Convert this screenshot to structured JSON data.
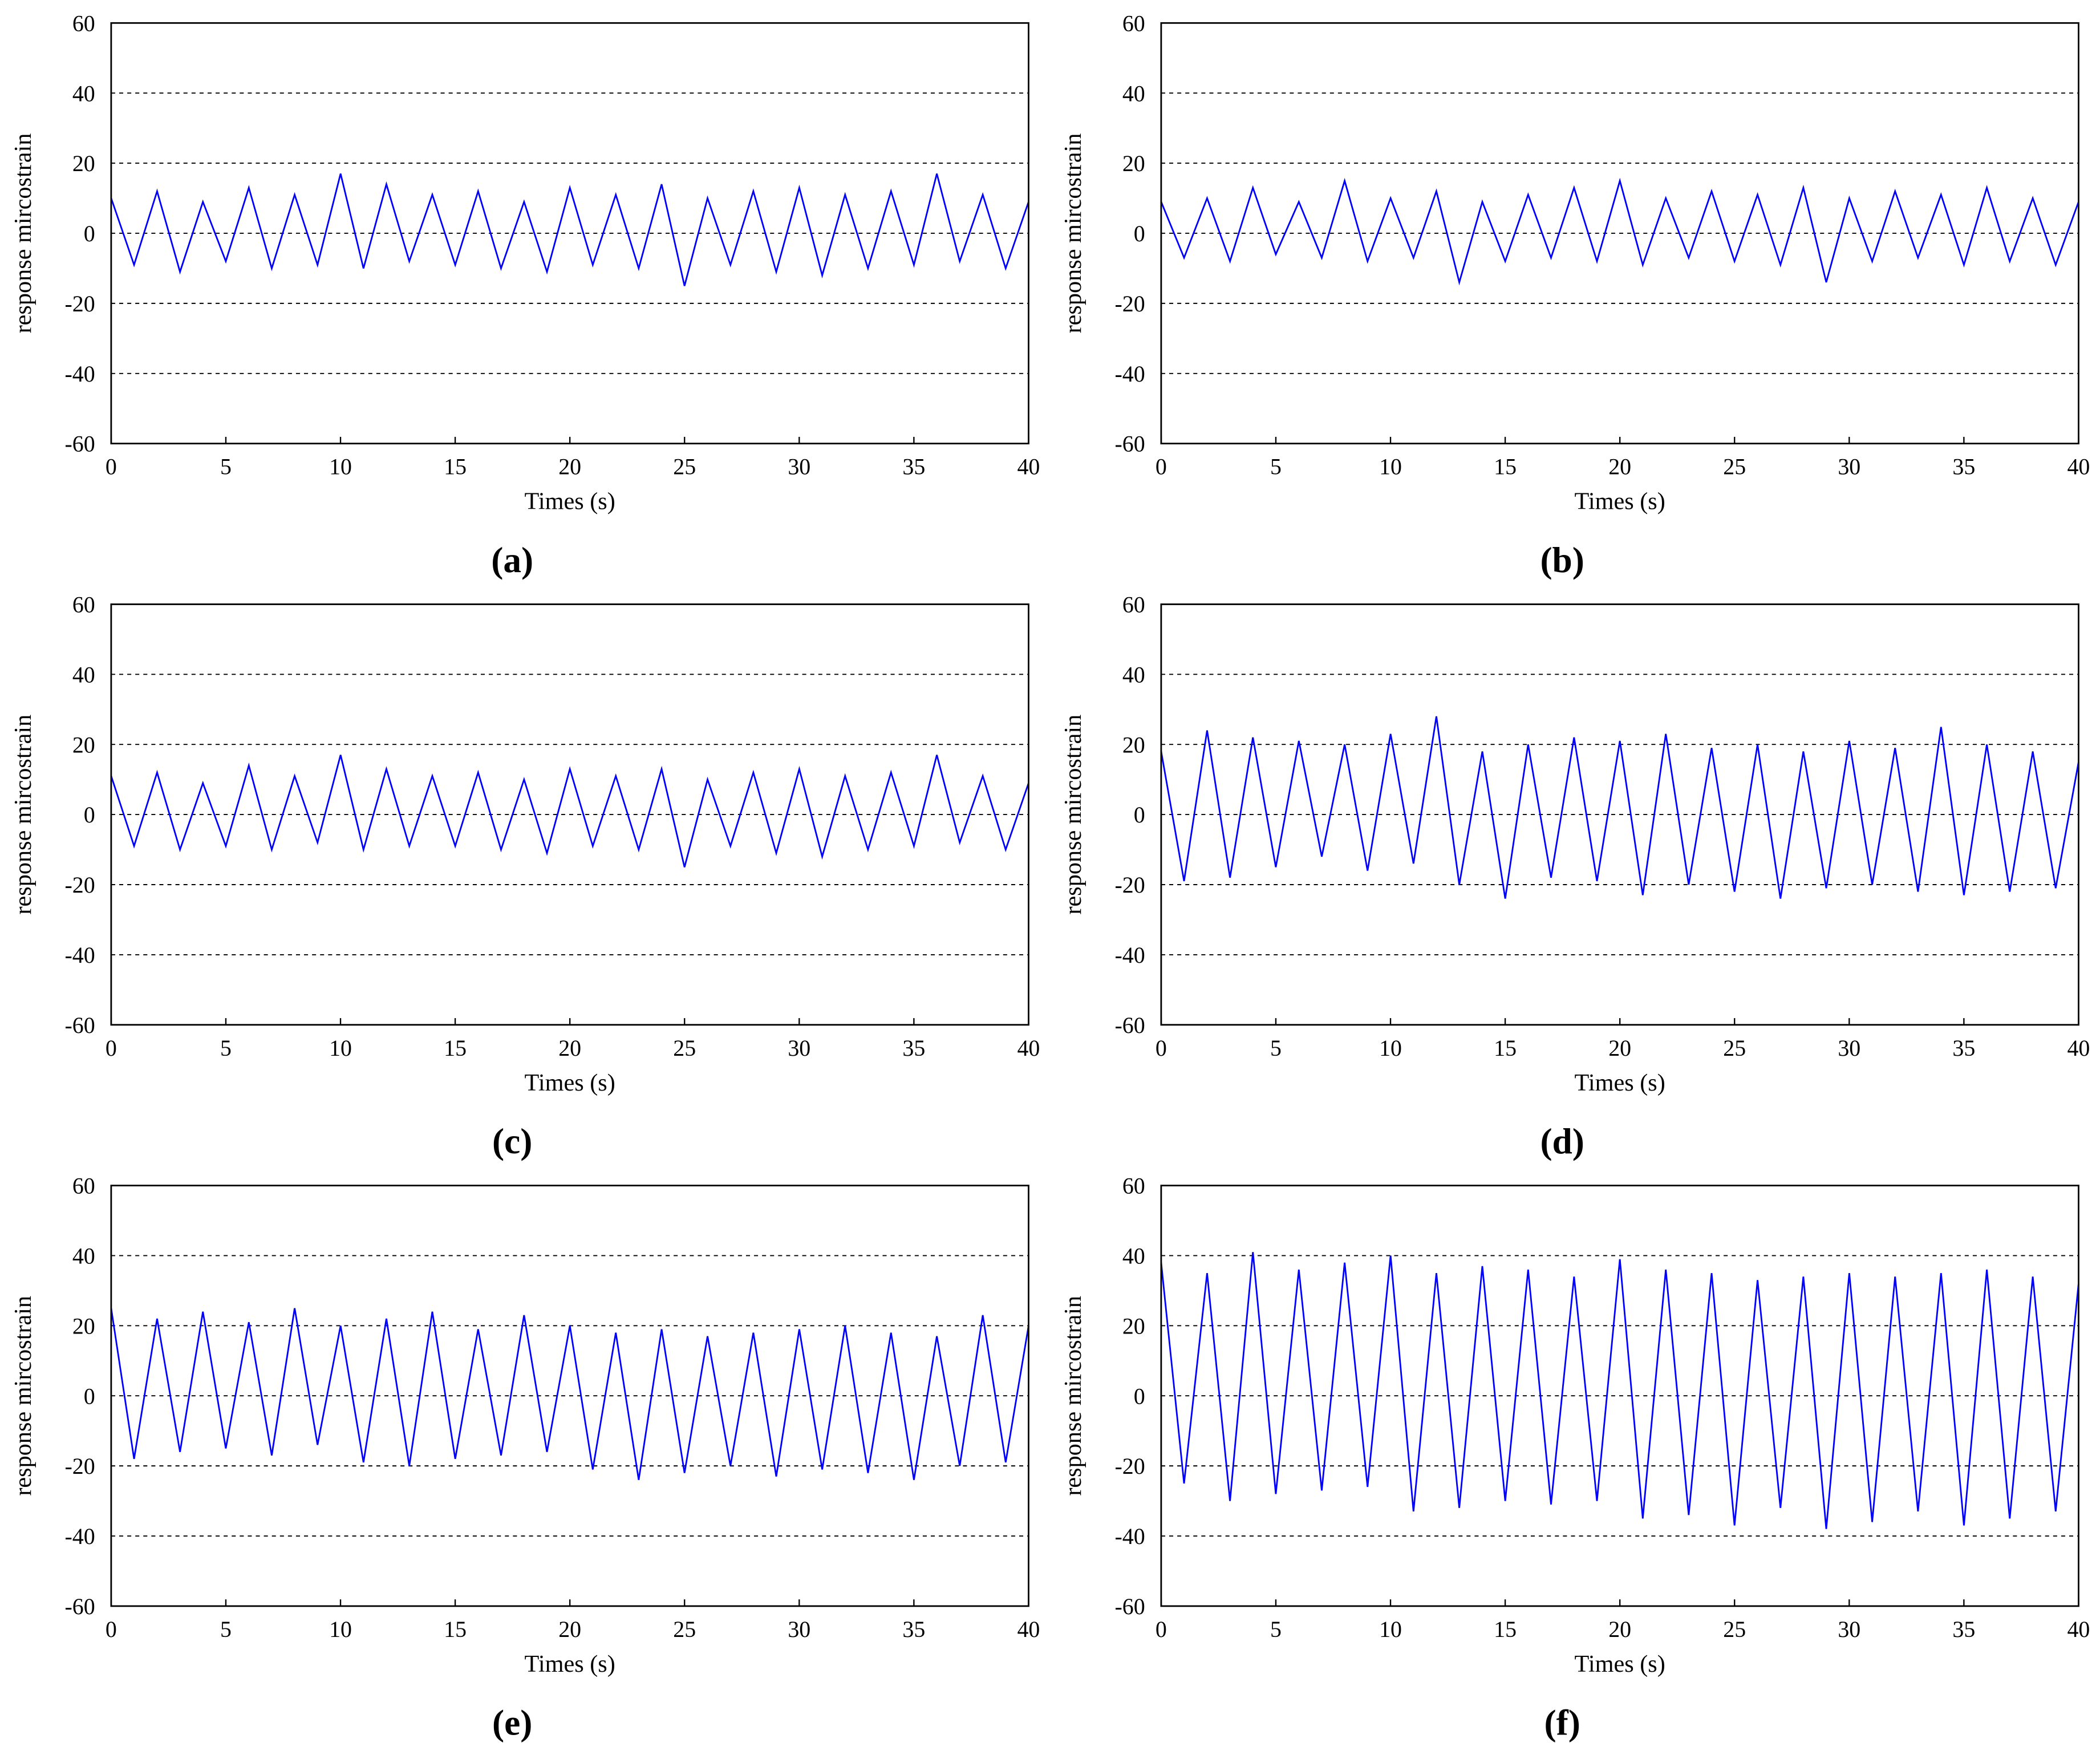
{
  "chart_data": [
    {
      "type": "line",
      "caption": "(a)",
      "xlabel": "Times (s)",
      "ylabel": "response mircostrain",
      "x": [
        0,
        1,
        2,
        3,
        4,
        5,
        6,
        7,
        8,
        9,
        10,
        11,
        12,
        13,
        14,
        15,
        16,
        17,
        18,
        19,
        20,
        21,
        22,
        23,
        24,
        25,
        26,
        27,
        28,
        29,
        30,
        31,
        32,
        33,
        34,
        35,
        36,
        37,
        38,
        39,
        40
      ],
      "color": "#0000ff",
      "values": [
        10,
        -9,
        12,
        -11,
        9,
        -8,
        13,
        -10,
        11,
        -9,
        17,
        -10,
        14,
        -8,
        11,
        -9,
        12,
        -10,
        9,
        -11,
        13,
        -9,
        11,
        -10,
        14,
        -15,
        10,
        -9,
        12,
        -11,
        13,
        -12,
        11,
        -10,
        12,
        -9,
        17,
        -8,
        11,
        -10,
        9
      ],
      "xlim": [
        0,
        40
      ],
      "ylim": [
        -60,
        60
      ],
      "xticks": [
        0,
        5,
        10,
        15,
        20,
        25,
        30,
        35,
        40
      ],
      "yticks": [
        -60,
        -40,
        -20,
        0,
        20,
        40,
        60
      ],
      "grid": true
    },
    {
      "type": "line",
      "caption": "(b)",
      "xlabel": "Times (s)",
      "ylabel": "response mircostrain",
      "x": [
        0,
        1,
        2,
        3,
        4,
        5,
        6,
        7,
        8,
        9,
        10,
        11,
        12,
        13,
        14,
        15,
        16,
        17,
        18,
        19,
        20,
        21,
        22,
        23,
        24,
        25,
        26,
        27,
        28,
        29,
        30,
        31,
        32,
        33,
        34,
        35,
        36,
        37,
        38,
        39,
        40
      ],
      "color": "#0000ff",
      "values": [
        9,
        -7,
        10,
        -8,
        13,
        -6,
        9,
        -7,
        15,
        -8,
        10,
        -7,
        12,
        -14,
        9,
        -8,
        11,
        -7,
        13,
        -8,
        15,
        -9,
        10,
        -7,
        12,
        -8,
        11,
        -9,
        13,
        -14,
        10,
        -8,
        12,
        -7,
        11,
        -9,
        13,
        -8,
        10,
        -9,
        9
      ],
      "xlim": [
        0,
        40
      ],
      "ylim": [
        -60,
        60
      ],
      "xticks": [
        0,
        5,
        10,
        15,
        20,
        25,
        30,
        35,
        40
      ],
      "yticks": [
        -60,
        -40,
        -20,
        0,
        20,
        40,
        60
      ],
      "grid": true
    },
    {
      "type": "line",
      "caption": "(c)",
      "xlabel": "Times (s)",
      "ylabel": "response mircostrain",
      "x": [
        0,
        1,
        2,
        3,
        4,
        5,
        6,
        7,
        8,
        9,
        10,
        11,
        12,
        13,
        14,
        15,
        16,
        17,
        18,
        19,
        20,
        21,
        22,
        23,
        24,
        25,
        26,
        27,
        28,
        29,
        30,
        31,
        32,
        33,
        34,
        35,
        36,
        37,
        38,
        39,
        40
      ],
      "color": "#0000ff",
      "values": [
        11,
        -9,
        12,
        -10,
        9,
        -9,
        14,
        -10,
        11,
        -8,
        17,
        -10,
        13,
        -9,
        11,
        -9,
        12,
        -10,
        10,
        -11,
        13,
        -9,
        11,
        -10,
        13,
        -15,
        10,
        -9,
        12,
        -11,
        13,
        -12,
        11,
        -10,
        12,
        -9,
        17,
        -8,
        11,
        -10,
        9
      ],
      "xlim": [
        0,
        40
      ],
      "ylim": [
        -60,
        60
      ],
      "xticks": [
        0,
        5,
        10,
        15,
        20,
        25,
        30,
        35,
        40
      ],
      "yticks": [
        -60,
        -40,
        -20,
        0,
        20,
        40,
        60
      ],
      "grid": true
    },
    {
      "type": "line",
      "caption": "(d)",
      "xlabel": "Times (s)",
      "ylabel": "response mircostrain",
      "x": [
        0,
        1,
        2,
        3,
        4,
        5,
        6,
        7,
        8,
        9,
        10,
        11,
        12,
        13,
        14,
        15,
        16,
        17,
        18,
        19,
        20,
        21,
        22,
        23,
        24,
        25,
        26,
        27,
        28,
        29,
        30,
        31,
        32,
        33,
        34,
        35,
        36,
        37,
        38,
        39,
        40
      ],
      "color": "#0000ff",
      "values": [
        18,
        -19,
        24,
        -18,
        22,
        -15,
        21,
        -12,
        20,
        -16,
        23,
        -14,
        28,
        -20,
        18,
        -24,
        20,
        -18,
        22,
        -19,
        21,
        -23,
        23,
        -20,
        19,
        -22,
        20,
        -24,
        18,
        -21,
        21,
        -20,
        19,
        -22,
        25,
        -23,
        20,
        -22,
        18,
        -21,
        15
      ],
      "xlim": [
        0,
        40
      ],
      "ylim": [
        -60,
        60
      ],
      "xticks": [
        0,
        5,
        10,
        15,
        20,
        25,
        30,
        35,
        40
      ],
      "yticks": [
        -60,
        -40,
        -20,
        0,
        20,
        40,
        60
      ],
      "grid": true
    },
    {
      "type": "line",
      "caption": "(e)",
      "xlabel": "Times (s)",
      "ylabel": "response mircostrain",
      "x": [
        0,
        1,
        2,
        3,
        4,
        5,
        6,
        7,
        8,
        9,
        10,
        11,
        12,
        13,
        14,
        15,
        16,
        17,
        18,
        19,
        20,
        21,
        22,
        23,
        24,
        25,
        26,
        27,
        28,
        29,
        30,
        31,
        32,
        33,
        34,
        35,
        36,
        37,
        38,
        39,
        40
      ],
      "color": "#0000ff",
      "values": [
        25,
        -18,
        22,
        -16,
        24,
        -15,
        21,
        -17,
        25,
        -14,
        20,
        -19,
        22,
        -20,
        24,
        -18,
        19,
        -17,
        23,
        -16,
        20,
        -21,
        18,
        -24,
        19,
        -22,
        17,
        -20,
        18,
        -23,
        19,
        -21,
        20,
        -22,
        18,
        -24,
        17,
        -20,
        23,
        -19,
        20
      ],
      "xlim": [
        0,
        40
      ],
      "ylim": [
        -60,
        60
      ],
      "xticks": [
        0,
        5,
        10,
        15,
        20,
        25,
        30,
        35,
        40
      ],
      "yticks": [
        -60,
        -40,
        -20,
        0,
        20,
        40,
        60
      ],
      "grid": true
    },
    {
      "type": "line",
      "caption": "(f)",
      "xlabel": "Times (s)",
      "ylabel": "response mircostrain",
      "x": [
        0,
        1,
        2,
        3,
        4,
        5,
        6,
        7,
        8,
        9,
        10,
        11,
        12,
        13,
        14,
        15,
        16,
        17,
        18,
        19,
        20,
        21,
        22,
        23,
        24,
        25,
        26,
        27,
        28,
        29,
        30,
        31,
        32,
        33,
        34,
        35,
        36,
        37,
        38,
        39,
        40
      ],
      "color": "#0000ff",
      "values": [
        38,
        -25,
        35,
        -30,
        41,
        -28,
        36,
        -27,
        38,
        -26,
        40,
        -33,
        35,
        -32,
        37,
        -30,
        36,
        -31,
        34,
        -30,
        39,
        -35,
        36,
        -34,
        35,
        -37,
        33,
        -32,
        34,
        -38,
        35,
        -36,
        34,
        -33,
        35,
        -37,
        36,
        -35,
        34,
        -33,
        32
      ],
      "xlim": [
        0,
        40
      ],
      "ylim": [
        -60,
        60
      ],
      "xticks": [
        0,
        5,
        10,
        15,
        20,
        25,
        30,
        35,
        40
      ],
      "yticks": [
        -60,
        -40,
        -20,
        0,
        20,
        40,
        60
      ],
      "grid": true
    }
  ]
}
